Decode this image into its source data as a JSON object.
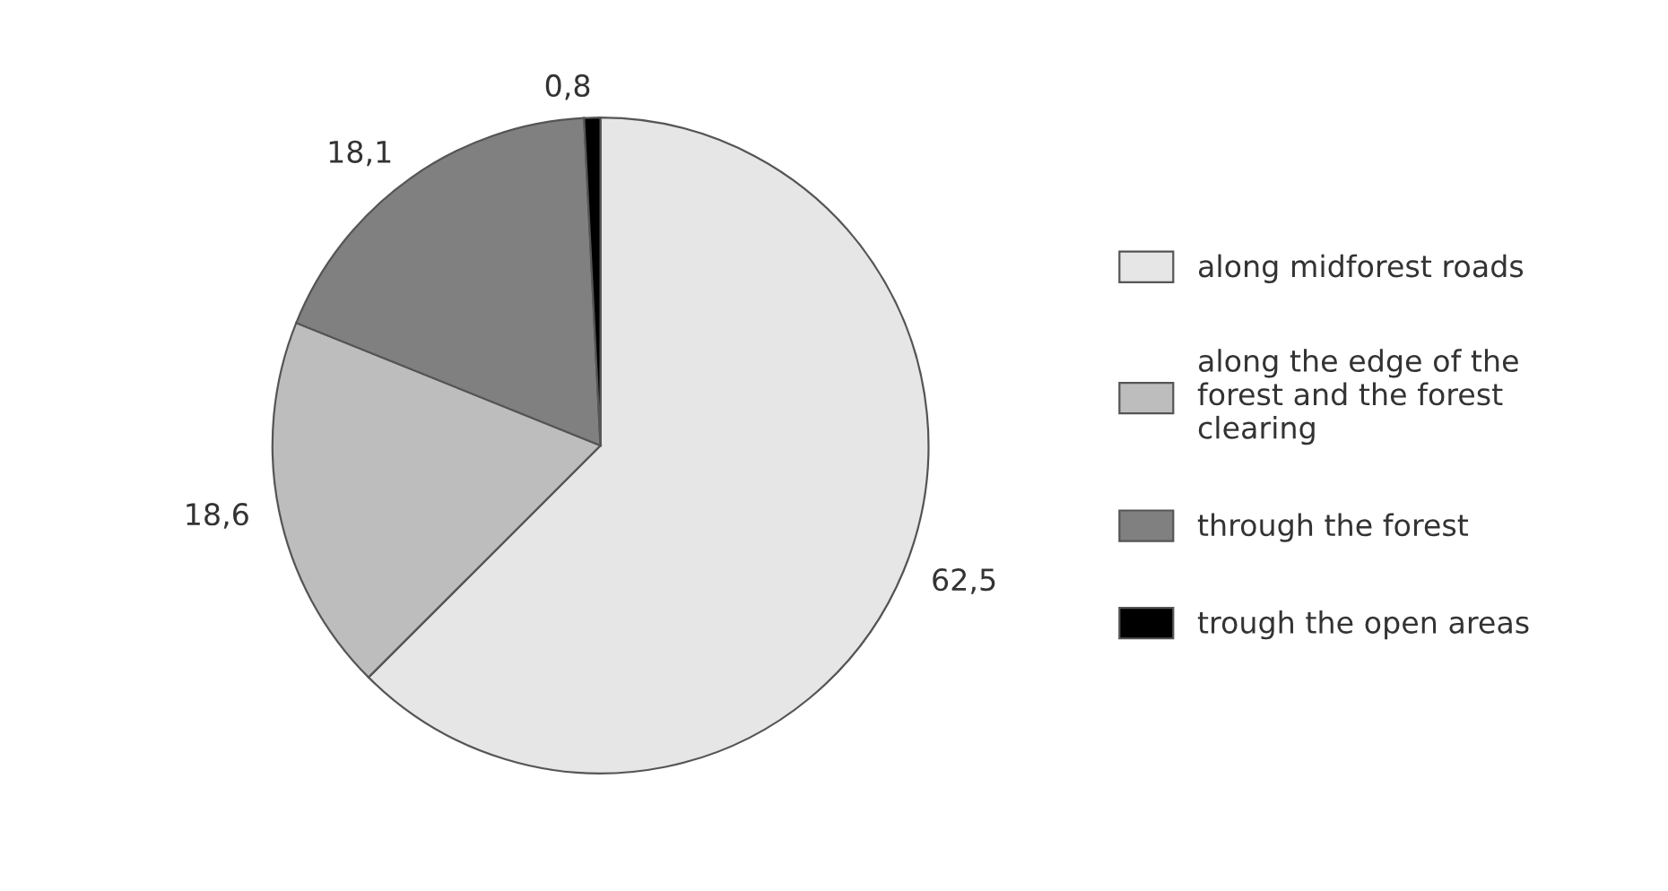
{
  "chart_data": {
    "type": "pie",
    "categories": [
      "along midforest roads",
      "along the edge of the\nforest and the forest\nclearing",
      "through the forest",
      "trough the open areas"
    ],
    "values": [
      62.5,
      18.6,
      18.1,
      0.8
    ],
    "value_labels": [
      "62,5",
      "18,6",
      "18,1",
      "0,8"
    ],
    "colors": [
      "#e6e6e6",
      "#bdbdbd",
      "#808080",
      "#000000"
    ],
    "legend": "right"
  }
}
